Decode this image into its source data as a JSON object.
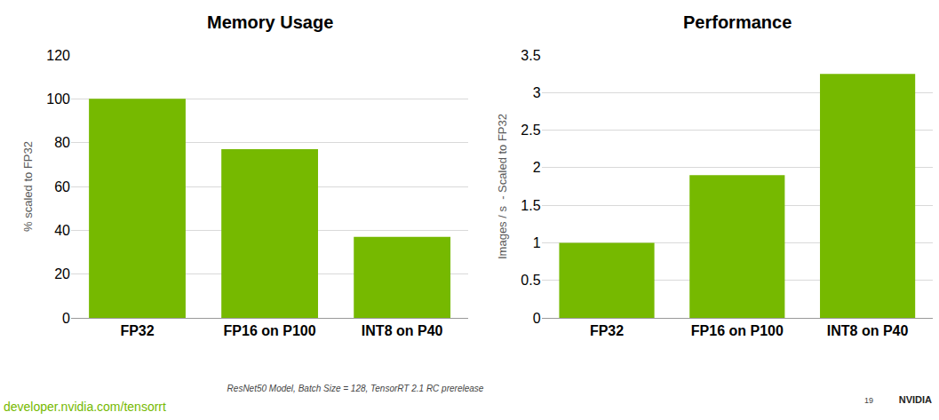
{
  "chart_data": [
    {
      "type": "bar",
      "title": "Memory Usage",
      "categories": [
        "FP32",
        "FP16 on P100",
        "INT8 on P40"
      ],
      "values": [
        100,
        77,
        37
      ],
      "color": "#76b900",
      "y_label": "% scaled to FP32",
      "ylim": [
        0,
        120
      ],
      "yticks": [
        0,
        20,
        40,
        60,
        80,
        100,
        120
      ],
      "grid": true
    },
    {
      "type": "bar",
      "title": "Performance",
      "categories": [
        "FP32",
        "FP16 on P100",
        "INT8 on P40"
      ],
      "values": [
        1,
        1.9,
        3.25
      ],
      "color": "#76b900",
      "y_label": "Images / s  - Scaled to FP32",
      "ylim": [
        0,
        3.5
      ],
      "yticks": [
        0,
        0.5,
        1,
        1.5,
        2,
        2.5,
        3,
        3.5
      ],
      "grid": true
    }
  ],
  "footer": {
    "note": "ResNet50 Model, Batch Size = 128, TensorRT 2.1 RC prerelease",
    "url": "developer.nvidia.com/tensorrt",
    "page": 19,
    "brand": "NVIDIA"
  }
}
